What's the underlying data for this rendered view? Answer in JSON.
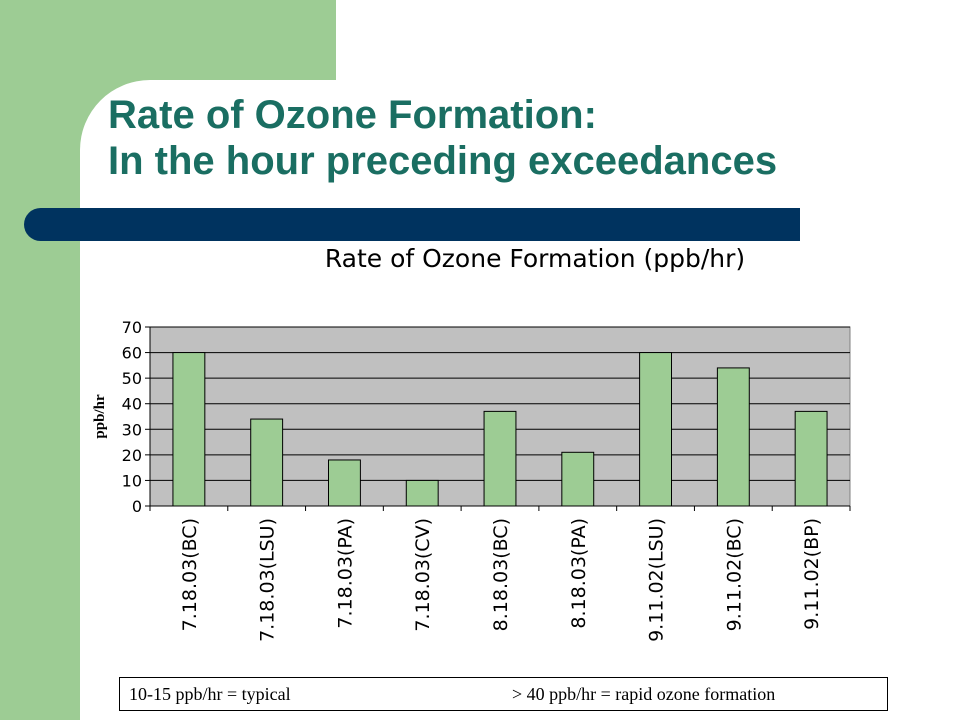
{
  "slide": {
    "title_line1": "Rate of Ozone Formation:",
    "title_line2": "In the hour preceding exceedances",
    "note_left": "10-15 ppb/hr = typical",
    "note_right": "> 40 ppb/hr = rapid ozone formation"
  },
  "colors": {
    "title": "#1a6e62",
    "green_band": "#9dcc94",
    "navy_bar": "#00335f",
    "plot_bg": "#c0c0c0",
    "bar_fill": "#9dcc94"
  },
  "chart_data": {
    "type": "bar",
    "title": "Rate of Ozone Formation (ppb/hr)",
    "ylabel": "ppb/hr",
    "xlabel": "",
    "categories": [
      "7.18.03(BC)",
      "7.18.03(LSU)",
      "7.18.03(PA)",
      "7.18.03(CV)",
      "8.18.03(BC)",
      "8.18.03(PA)",
      "9.11.02(LSU)",
      "9.11.02(BC)",
      "9.11.02(BP)"
    ],
    "values": [
      60,
      34,
      18,
      10,
      37,
      21,
      60,
      54,
      37
    ],
    "ylim": [
      0,
      70
    ],
    "yticks": [
      0,
      10,
      20,
      30,
      40,
      50,
      60,
      70
    ],
    "grid": true,
    "legend": "none"
  }
}
